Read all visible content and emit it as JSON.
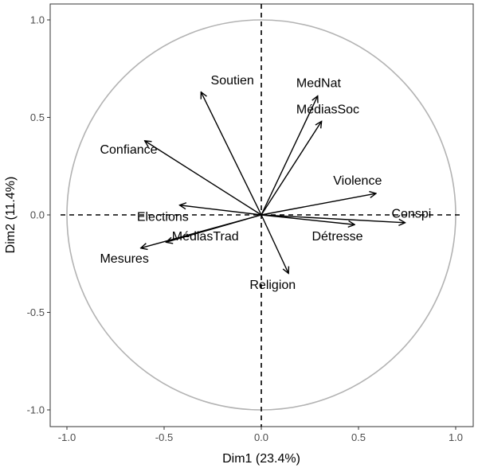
{
  "chart_data": {
    "type": "scatter",
    "subtype": "pca-variable-correlation-circle",
    "title": "",
    "xlabel": "Dim1 (23.4%)",
    "ylabel": "Dim2 (11.4%)",
    "xlim": [
      -1.0,
      1.0
    ],
    "ylim": [
      -1.0,
      1.0
    ],
    "xticks": [
      -1.0,
      -0.5,
      0.0,
      0.5,
      1.0
    ],
    "xtick_labels": [
      "-1.0",
      "-0.5",
      "0.0",
      "0.5",
      "1.0"
    ],
    "yticks": [
      -1.0,
      -0.5,
      0.0,
      0.5,
      1.0
    ],
    "ytick_labels": [
      "-1.0",
      "-0.5",
      "0.0",
      "0.5",
      "1.0"
    ],
    "grid": false,
    "unit_circle": true,
    "reference_lines": "dashed at x=0 and y=0",
    "variables": [
      {
        "name": "Soutien",
        "x": -0.31,
        "y": 0.63,
        "label_x": -0.26,
        "label_y": 0.67
      },
      {
        "name": "MedNat",
        "x": 0.29,
        "y": 0.61,
        "label_x": 0.18,
        "label_y": 0.655
      },
      {
        "name": "MédiasSoc",
        "x": 0.31,
        "y": 0.48,
        "label_x": 0.18,
        "label_y": 0.52
      },
      {
        "name": "Confiance",
        "x": -0.6,
        "y": 0.38,
        "label_x": -0.83,
        "label_y": 0.315
      },
      {
        "name": "Violence",
        "x": 0.59,
        "y": 0.11,
        "label_x": 0.37,
        "label_y": 0.155
      },
      {
        "name": "Elections",
        "x": -0.42,
        "y": 0.05,
        "label_x": -0.64,
        "label_y": -0.03
      },
      {
        "name": "Conspi",
        "x": 0.74,
        "y": -0.04,
        "label_x": 0.67,
        "label_y": -0.015
      },
      {
        "name": "MédiasTrad",
        "x": -0.49,
        "y": -0.14,
        "label_x": -0.46,
        "label_y": -0.13
      },
      {
        "name": "Mesures",
        "x": -0.62,
        "y": -0.17,
        "label_x": -0.83,
        "label_y": -0.245
      },
      {
        "name": "Détresse",
        "x": 0.48,
        "y": -0.05,
        "label_x": 0.26,
        "label_y": -0.13
      },
      {
        "name": "Religion",
        "x": 0.14,
        "y": -0.3,
        "label_x": -0.06,
        "label_y": -0.38
      }
    ]
  }
}
